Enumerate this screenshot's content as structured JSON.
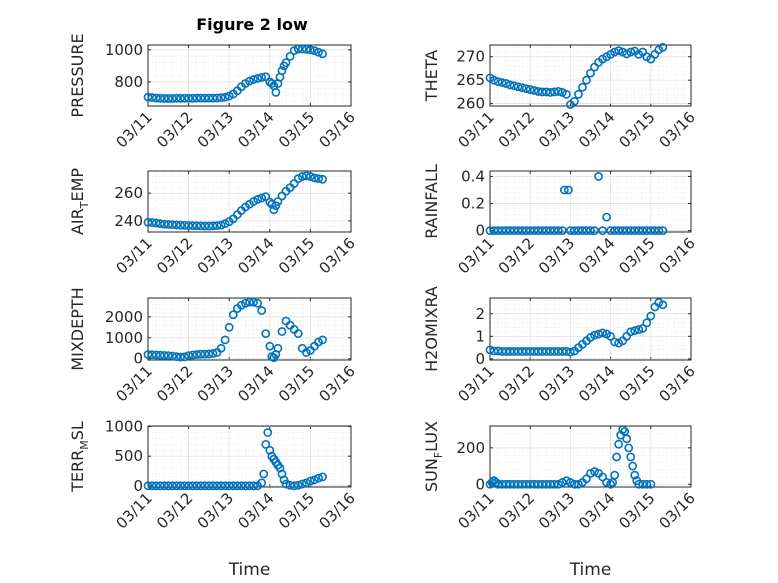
{
  "figure": {
    "title": "Figure 2 low"
  },
  "colors": {
    "marker": "#0072BD",
    "axes": "#262626",
    "grid": "#dcdcdc"
  },
  "chart_data": [
    {
      "type": "scatter",
      "ylabel": "PRESSURE",
      "xlim": [
        "03/11",
        "03/16"
      ],
      "ylim": [
        650,
        1030
      ],
      "yticks": [
        800,
        1000
      ],
      "xtick_labels": [
        "03/11",
        "03/12",
        "03/13",
        "03/14",
        "03/15",
        "03/16"
      ],
      "xlabel": "",
      "x": [
        0,
        0.1,
        0.2,
        0.3,
        0.4,
        0.5,
        0.6,
        0.7,
        0.8,
        0.9,
        1.0,
        1.1,
        1.2,
        1.3,
        1.4,
        1.5,
        1.6,
        1.7,
        1.8,
        1.9,
        2.0,
        2.1,
        2.2,
        2.3,
        2.4,
        2.5,
        2.6,
        2.7,
        2.8,
        2.9,
        3.0,
        3.05,
        3.1,
        3.15,
        3.2,
        3.25,
        3.3,
        3.35,
        3.4,
        3.5,
        3.6,
        3.7,
        3.8,
        3.9,
        4.0,
        4.1,
        4.2,
        4.3
      ],
      "y": [
        705,
        703,
        700,
        698,
        697,
        697,
        697,
        698,
        698,
        698,
        698,
        698,
        699,
        699,
        699,
        699,
        699,
        700,
        702,
        705,
        712,
        725,
        745,
        770,
        790,
        805,
        815,
        822,
        828,
        832,
        800,
        790,
        775,
        735,
        790,
        830,
        870,
        900,
        920,
        960,
        995,
        1005,
        1005,
        1003,
        1000,
        995,
        985,
        975
      ]
    },
    {
      "type": "scatter",
      "ylabel": "THETA",
      "xlim": [
        "03/11",
        "03/16"
      ],
      "ylim": [
        259.5,
        272.5
      ],
      "yticks": [
        260,
        265,
        270
      ],
      "xtick_labels": [
        "03/11",
        "03/12",
        "03/13",
        "03/14",
        "03/15",
        "03/16"
      ],
      "xlabel": "",
      "x": [
        0,
        0.1,
        0.2,
        0.3,
        0.4,
        0.5,
        0.6,
        0.7,
        0.8,
        0.9,
        1.0,
        1.1,
        1.2,
        1.3,
        1.4,
        1.5,
        1.6,
        1.7,
        1.8,
        1.9,
        2.0,
        2.1,
        2.2,
        2.3,
        2.4,
        2.5,
        2.6,
        2.7,
        2.8,
        2.9,
        3.0,
        3.1,
        3.2,
        3.3,
        3.4,
        3.5,
        3.6,
        3.7,
        3.8,
        3.9,
        4.0,
        4.1,
        4.2,
        4.3
      ],
      "y": [
        265.5,
        265.0,
        264.7,
        264.5,
        264.3,
        264.0,
        263.8,
        263.6,
        263.4,
        263.2,
        263.0,
        262.8,
        262.6,
        262.5,
        262.5,
        262.4,
        262.5,
        262.6,
        262.4,
        262.0,
        259.8,
        260.5,
        262.0,
        263.5,
        265.0,
        266.5,
        267.8,
        268.8,
        269.5,
        270.0,
        270.5,
        271.0,
        271.3,
        271.0,
        270.6,
        271.0,
        271.2,
        270.5,
        271.0,
        270.0,
        269.5,
        270.5,
        271.5,
        272.0
      ]
    },
    {
      "type": "scatter",
      "ylabel": "AIR_TEMP",
      "ylabel_main": "AIR",
      "ylabel_sub": "T",
      "ylabel_rest": "EMP",
      "xlim": [
        "03/11",
        "03/16"
      ],
      "ylim": [
        232,
        276
      ],
      "yticks": [
        240,
        260
      ],
      "xtick_labels": [
        "03/11",
        "03/12",
        "03/13",
        "03/14",
        "03/15",
        "03/16"
      ],
      "xlabel": "",
      "x": [
        0,
        0.1,
        0.2,
        0.3,
        0.4,
        0.5,
        0.6,
        0.7,
        0.8,
        0.9,
        1.0,
        1.1,
        1.2,
        1.3,
        1.4,
        1.5,
        1.6,
        1.7,
        1.8,
        1.9,
        2.0,
        2.1,
        2.2,
        2.3,
        2.4,
        2.5,
        2.6,
        2.7,
        2.8,
        2.9,
        3.0,
        3.05,
        3.1,
        3.15,
        3.2,
        3.3,
        3.4,
        3.5,
        3.6,
        3.7,
        3.8,
        3.9,
        4.0,
        4.1,
        4.2,
        4.3
      ],
      "y": [
        239,
        238.8,
        238.5,
        238.0,
        237.7,
        237.5,
        237.3,
        237.1,
        236.9,
        236.8,
        236.7,
        236.6,
        236.5,
        236.4,
        236.3,
        236.3,
        236.4,
        236.6,
        237.0,
        238.0,
        239.5,
        241.5,
        244.5,
        247.5,
        250.0,
        252.0,
        254.0,
        255.5,
        256.5,
        257.5,
        253.5,
        252.0,
        248.0,
        251.0,
        254.0,
        258.0,
        261.5,
        264.0,
        267.0,
        270.5,
        272.0,
        272.5,
        272.0,
        271.0,
        270.5,
        270.0
      ]
    },
    {
      "type": "scatter",
      "ylabel": "RAINFALL",
      "xlim": [
        "03/11",
        "03/16"
      ],
      "ylim": [
        -0.01,
        0.44
      ],
      "yticks": [
        0,
        0.2,
        0.4
      ],
      "xtick_labels": [
        "03/11",
        "03/12",
        "03/13",
        "03/14",
        "03/15",
        "03/16"
      ],
      "xlabel": "",
      "x": [
        0,
        0.1,
        0.2,
        0.3,
        0.4,
        0.5,
        0.6,
        0.7,
        0.8,
        0.9,
        1.0,
        1.1,
        1.2,
        1.3,
        1.4,
        1.5,
        1.6,
        1.7,
        1.8,
        1.85,
        1.95,
        2.0,
        2.1,
        2.2,
        2.3,
        2.4,
        2.5,
        2.6,
        2.7,
        2.8,
        2.9,
        3.0,
        3.1,
        3.2,
        3.3,
        3.4,
        3.5,
        3.6,
        3.7,
        3.8,
        3.9,
        4.0,
        4.1,
        4.2,
        4.3
      ],
      "y": [
        0,
        0,
        0,
        0,
        0,
        0,
        0,
        0,
        0,
        0,
        0,
        0,
        0,
        0,
        0,
        0,
        0,
        0,
        0,
        0.3,
        0.3,
        0,
        0,
        0,
        0,
        0,
        0,
        0,
        0.4,
        0,
        0.1,
        0,
        0,
        0,
        0,
        0,
        0,
        0,
        0,
        0,
        0,
        0,
        0,
        0,
        0
      ]
    },
    {
      "type": "scatter",
      "ylabel": "MIXDEPTH",
      "xlim": [
        "03/11",
        "03/16"
      ],
      "ylim": [
        -60,
        2900
      ],
      "yticks": [
        0,
        1000,
        2000
      ],
      "xtick_labels": [
        "03/11",
        "03/12",
        "03/13",
        "03/14",
        "03/15",
        "03/16"
      ],
      "xlabel": "",
      "x": [
        0,
        0.1,
        0.2,
        0.3,
        0.4,
        0.5,
        0.6,
        0.7,
        0.8,
        0.9,
        1.0,
        1.1,
        1.2,
        1.3,
        1.4,
        1.5,
        1.6,
        1.7,
        1.8,
        1.9,
        2.0,
        2.1,
        2.2,
        2.3,
        2.4,
        2.5,
        2.6,
        2.7,
        2.8,
        2.9,
        3.0,
        3.05,
        3.1,
        3.15,
        3.2,
        3.3,
        3.4,
        3.5,
        3.6,
        3.7,
        3.8,
        3.9,
        4.0,
        4.1,
        4.2,
        4.3
      ],
      "y": [
        200,
        190,
        180,
        170,
        160,
        150,
        130,
        100,
        80,
        90,
        150,
        180,
        200,
        220,
        220,
        230,
        250,
        300,
        500,
        900,
        1500,
        2100,
        2400,
        2550,
        2650,
        2700,
        2700,
        2650,
        2300,
        1200,
        600,
        100,
        50,
        200,
        500,
        1300,
        1800,
        1600,
        1400,
        1200,
        500,
        300,
        400,
        600,
        800,
        900
      ]
    },
    {
      "type": "scatter",
      "ylabel": "H2OMIXRA",
      "xlim": [
        "03/11",
        "03/16"
      ],
      "ylim": [
        -0.05,
        2.7
      ],
      "yticks": [
        0,
        1,
        2
      ],
      "xtick_labels": [
        "03/11",
        "03/12",
        "03/13",
        "03/14",
        "03/15",
        "03/16"
      ],
      "xlabel": "",
      "x": [
        0,
        0.1,
        0.2,
        0.3,
        0.4,
        0.5,
        0.6,
        0.7,
        0.8,
        0.9,
        1.0,
        1.1,
        1.2,
        1.3,
        1.4,
        1.5,
        1.6,
        1.7,
        1.8,
        1.9,
        2.0,
        2.1,
        2.2,
        2.3,
        2.4,
        2.5,
        2.6,
        2.7,
        2.8,
        2.9,
        3.0,
        3.1,
        3.2,
        3.3,
        3.4,
        3.5,
        3.6,
        3.7,
        3.8,
        3.9,
        4.0,
        4.1,
        4.2,
        4.3
      ],
      "y": [
        0.4,
        0.35,
        0.35,
        0.33,
        0.33,
        0.33,
        0.33,
        0.33,
        0.33,
        0.33,
        0.33,
        0.33,
        0.33,
        0.33,
        0.33,
        0.33,
        0.33,
        0.33,
        0.33,
        0.33,
        0.3,
        0.35,
        0.5,
        0.65,
        0.8,
        0.95,
        1.05,
        1.1,
        1.15,
        1.1,
        1.0,
        0.75,
        0.7,
        0.8,
        1.0,
        1.2,
        1.25,
        1.3,
        1.35,
        1.6,
        1.9,
        2.3,
        2.5,
        2.4
      ]
    },
    {
      "type": "scatter",
      "ylabel": "TERR_MSL",
      "ylabel_main": "TERR",
      "ylabel_sub": "M",
      "ylabel_rest": "SL",
      "xlim": [
        "03/11",
        "03/16"
      ],
      "ylim": [
        -20,
        1010
      ],
      "yticks": [
        0,
        500,
        1000
      ],
      "xtick_labels": [
        "03/11",
        "03/12",
        "03/13",
        "03/14",
        "03/15",
        "03/16"
      ],
      "xlabel": "Time",
      "x": [
        0,
        0.1,
        0.2,
        0.3,
        0.4,
        0.5,
        0.6,
        0.7,
        0.8,
        0.9,
        1.0,
        1.1,
        1.2,
        1.3,
        1.4,
        1.5,
        1.6,
        1.7,
        1.8,
        1.9,
        2.0,
        2.1,
        2.2,
        2.3,
        2.4,
        2.5,
        2.6,
        2.7,
        2.8,
        2.85,
        2.9,
        2.95,
        3.0,
        3.05,
        3.1,
        3.15,
        3.2,
        3.25,
        3.3,
        3.35,
        3.4,
        3.5,
        3.6,
        3.7,
        3.8,
        3.9,
        4.0,
        4.1,
        4.2,
        4.3
      ],
      "y": [
        0,
        0,
        0,
        0,
        0,
        0,
        0,
        0,
        0,
        0,
        0,
        0,
        0,
        0,
        0,
        0,
        0,
        0,
        0,
        0,
        0,
        0,
        0,
        0,
        0,
        0,
        0,
        0,
        50,
        200,
        700,
        900,
        600,
        500,
        450,
        400,
        350,
        300,
        200,
        100,
        30,
        10,
        0,
        10,
        30,
        50,
        80,
        100,
        130,
        150
      ]
    },
    {
      "type": "scatter",
      "ylabel": "SUN_FLUX",
      "ylabel_main": "SUN",
      "ylabel_sub": "F",
      "ylabel_rest": "LUX",
      "xlim": [
        "03/11",
        "03/16"
      ],
      "ylim": [
        -15,
        320
      ],
      "yticks": [
        0,
        200
      ],
      "xtick_labels": [
        "03/11",
        "03/12",
        "03/13",
        "03/14",
        "03/15",
        "03/16"
      ],
      "xlabel": "Time",
      "x": [
        0,
        0.05,
        0.1,
        0.15,
        0.2,
        0.3,
        0.4,
        0.5,
        0.6,
        0.7,
        0.8,
        0.9,
        1.0,
        1.1,
        1.2,
        1.3,
        1.4,
        1.5,
        1.6,
        1.7,
        1.8,
        1.9,
        2.0,
        2.1,
        2.2,
        2.3,
        2.4,
        2.5,
        2.6,
        2.7,
        2.8,
        2.9,
        3.0,
        3.05,
        3.1,
        3.15,
        3.2,
        3.25,
        3.3,
        3.35,
        3.4,
        3.45,
        3.5,
        3.55,
        3.6,
        3.65,
        3.7,
        3.8,
        3.9,
        4.0
      ],
      "y": [
        0,
        10,
        20,
        10,
        0,
        0,
        0,
        0,
        0,
        0,
        0,
        0,
        0,
        0,
        0,
        0,
        0,
        0,
        0,
        0,
        10,
        20,
        10,
        0,
        0,
        10,
        30,
        60,
        70,
        60,
        40,
        10,
        0,
        10,
        50,
        150,
        220,
        270,
        300,
        290,
        250,
        200,
        150,
        100,
        50,
        20,
        0,
        0,
        0,
        0
      ]
    }
  ]
}
